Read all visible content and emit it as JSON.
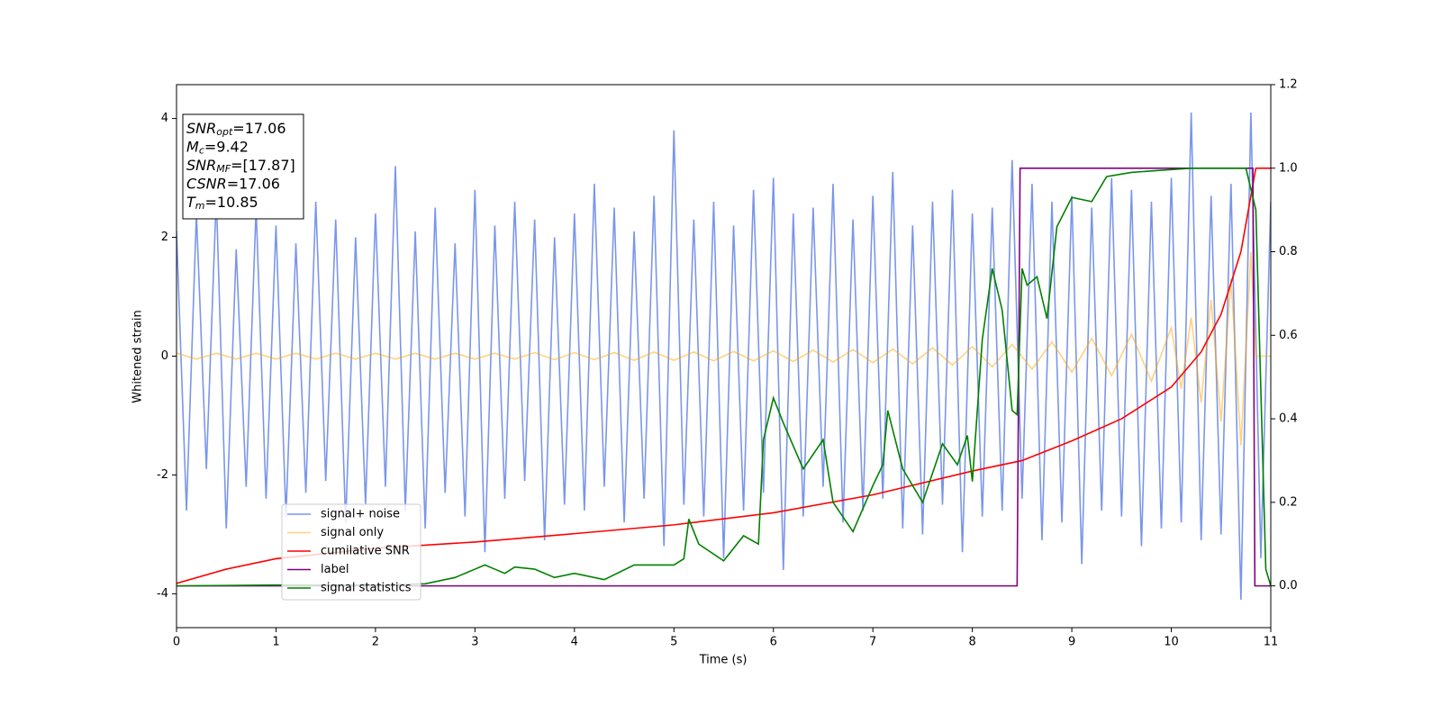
{
  "chart_data": {
    "type": "line",
    "xlabel": "Time (s)",
    "ylabel": "Whitened strain",
    "xlim": [
      0,
      11
    ],
    "xticks": [
      0,
      1,
      2,
      3,
      4,
      5,
      6,
      7,
      8,
      9,
      10,
      11
    ],
    "ylim": [
      -4.57,
      4.57
    ],
    "yticks": [
      -4,
      -2,
      0,
      2,
      4
    ],
    "y2lim": [
      -0.1,
      1.2
    ],
    "y2ticks": [
      {
        "value": 0,
        "label": "0.0"
      },
      {
        "value": 0.2,
        "label": "0.2"
      },
      {
        "value": 0.4,
        "label": "0.4"
      },
      {
        "value": 0.6,
        "label": "0.6"
      },
      {
        "value": 0.8,
        "label": "0.8"
      },
      {
        "value": 1.0,
        "label": "1.0"
      },
      {
        "value": 1.2,
        "label": "1.2"
      }
    ],
    "legend": "lower left",
    "annotation": [
      {
        "text": "SNR",
        "sub": "opt",
        "rest": "=17.06"
      },
      {
        "text": "M",
        "sub": "c",
        "rest": "=9.42"
      },
      {
        "text": "SNR",
        "sub": "MF",
        "rest": "=[17.87]"
      },
      {
        "text": "CSNR",
        "rest": "=17.06"
      },
      {
        "text": "T",
        "sub": "m",
        "rest": "=10.85"
      }
    ],
    "series": [
      {
        "name": "signal+ noise",
        "color": "#4169e1",
        "opacity": 0.7,
        "x": [
          0,
          0.1,
          0.2,
          0.3,
          0.4,
          0.5,
          0.6,
          0.7,
          0.8,
          0.9,
          1,
          1.1,
          1.2,
          1.3,
          1.4,
          1.5,
          1.6,
          1.7,
          1.8,
          1.9,
          2,
          2.1,
          2.2,
          2.3,
          2.4,
          2.5,
          2.6,
          2.7,
          2.8,
          2.9,
          3,
          3.1,
          3.2,
          3.3,
          3.4,
          3.5,
          3.6,
          3.7,
          3.8,
          3.9,
          4,
          4.1,
          4.2,
          4.3,
          4.4,
          4.5,
          4.6,
          4.7,
          4.8,
          4.9,
          5,
          5.1,
          5.2,
          5.3,
          5.4,
          5.5,
          5.6,
          5.7,
          5.8,
          5.9,
          6,
          6.1,
          6.2,
          6.3,
          6.4,
          6.5,
          6.6,
          6.7,
          6.8,
          6.9,
          7,
          7.1,
          7.2,
          7.3,
          7.4,
          7.5,
          7.6,
          7.7,
          7.8,
          7.9,
          8,
          8.1,
          8.2,
          8.3,
          8.4,
          8.5,
          8.6,
          8.7,
          8.8,
          8.9,
          9,
          9.1,
          9.2,
          9.3,
          9.4,
          9.5,
          9.6,
          9.7,
          9.8,
          9.9,
          10,
          10.1,
          10.2,
          10.3,
          10.4,
          10.5,
          10.6,
          10.7,
          10.8,
          10.9,
          11
        ],
        "values": [
          2.1,
          -2.6,
          2.4,
          -1.9,
          2.7,
          -2.9,
          1.8,
          -2.2,
          2.5,
          -2.4,
          2.2,
          -2.7,
          1.9,
          -2.3,
          2.6,
          -2.1,
          2.3,
          -2.8,
          2.0,
          -2.5,
          2.4,
          -2.2,
          3.2,
          -2.6,
          2.1,
          -2.9,
          2.5,
          -2.3,
          1.9,
          -2.7,
          2.8,
          -3.3,
          2.2,
          -2.4,
          2.6,
          -2.1,
          2.3,
          -3.1,
          2.0,
          -2.5,
          2.4,
          -2.6,
          2.9,
          -2.2,
          2.5,
          -2.8,
          2.1,
          -2.4,
          2.7,
          -3.2,
          3.8,
          -2.5,
          2.3,
          -2.7,
          2.6,
          -3.4,
          2.2,
          -2.6,
          2.8,
          -2.3,
          3.0,
          -3.6,
          2.4,
          -2.7,
          2.5,
          -2.2,
          2.9,
          -2.8,
          2.3,
          -2.6,
          2.7,
          -2.4,
          3.1,
          -2.9,
          2.2,
          -3.0,
          2.6,
          -2.5,
          2.8,
          -3.3,
          2.4,
          -2.7,
          2.5,
          -2.6,
          3.3,
          -2.4,
          2.9,
          -3.1,
          2.6,
          -2.8,
          2.7,
          -3.5,
          2.5,
          -2.6,
          3.0,
          -2.7,
          2.8,
          -3.2,
          2.6,
          -2.9,
          3.0,
          -2.8,
          4.1,
          -3.1,
          2.7,
          -3.0,
          2.9,
          -4.1,
          4.1,
          -3.4,
          2.6
        ]
      },
      {
        "name": "signal only",
        "color": "#ffa500",
        "opacity": 0.5,
        "x": [
          0,
          0.2,
          0.4,
          0.6,
          0.8,
          1,
          1.2,
          1.4,
          1.6,
          1.8,
          2,
          2.2,
          2.4,
          2.6,
          2.8,
          3,
          3.2,
          3.4,
          3.6,
          3.8,
          4,
          4.2,
          4.4,
          4.6,
          4.8,
          5,
          5.2,
          5.4,
          5.6,
          5.8,
          6,
          6.2,
          6.4,
          6.6,
          6.8,
          7,
          7.2,
          7.4,
          7.6,
          7.8,
          8,
          8.2,
          8.4,
          8.6,
          8.8,
          9,
          9.2,
          9.4,
          9.6,
          9.8,
          10,
          10.1,
          10.2,
          10.3,
          10.4,
          10.5,
          10.6,
          10.7,
          10.8,
          10.85,
          11
        ],
        "values": [
          0.05,
          -0.05,
          0.05,
          -0.05,
          0.05,
          -0.05,
          0.05,
          -0.05,
          0.05,
          -0.05,
          0.05,
          -0.05,
          0.05,
          -0.05,
          0.05,
          -0.05,
          0.05,
          -0.05,
          0.06,
          -0.06,
          0.06,
          -0.06,
          0.06,
          -0.07,
          0.07,
          -0.07,
          0.07,
          -0.08,
          0.08,
          -0.08,
          0.09,
          -0.09,
          0.1,
          -0.1,
          0.11,
          -0.11,
          0.12,
          -0.13,
          0.14,
          -0.15,
          0.16,
          -0.18,
          0.2,
          -0.22,
          0.24,
          -0.27,
          0.3,
          -0.33,
          0.37,
          -0.42,
          0.48,
          -0.55,
          0.65,
          -0.78,
          0.95,
          -1.1,
          1.3,
          -1.5,
          1.75,
          0,
          0
        ]
      },
      {
        "name": "cumilative SNR",
        "color": "#ff0000",
        "axis": "y2",
        "x": [
          0,
          0.5,
          1,
          2,
          3,
          4,
          5,
          6,
          7,
          8,
          8.5,
          9,
          9.5,
          10,
          10.3,
          10.5,
          10.7,
          10.85,
          11
        ],
        "values": [
          0.006,
          0.04,
          0.065,
          0.09,
          0.105,
          0.125,
          0.146,
          0.175,
          0.218,
          0.275,
          0.3,
          0.347,
          0.4,
          0.476,
          0.56,
          0.65,
          0.8,
          1.0,
          1.0
        ]
      },
      {
        "name": "label",
        "color": "#800080",
        "axis": "y2",
        "x": [
          0,
          8.45,
          8.48,
          10.82,
          10.84,
          11
        ],
        "values": [
          0,
          0,
          1,
          1,
          0,
          0
        ]
      },
      {
        "name": "signal statistics",
        "color": "#008000",
        "axis": "y2",
        "x": [
          0,
          1,
          2,
          2.5,
          2.8,
          3.0,
          3.1,
          3.2,
          3.3,
          3.4,
          3.6,
          3.8,
          4.0,
          4.3,
          4.6,
          5.0,
          5.1,
          5.15,
          5.25,
          5.5,
          5.7,
          5.85,
          5.9,
          6.0,
          6.1,
          6.3,
          6.5,
          6.6,
          6.8,
          7.0,
          7.1,
          7.15,
          7.3,
          7.5,
          7.7,
          7.85,
          7.95,
          8.0,
          8.1,
          8.2,
          8.3,
          8.4,
          8.45,
          8.5,
          8.55,
          8.65,
          8.75,
          8.85,
          9.0,
          9.2,
          9.35,
          9.6,
          9.9,
          10.2,
          10.5,
          10.75,
          10.85,
          10.95,
          11
        ],
        "values": [
          0,
          0.002,
          0.002,
          0.005,
          0.02,
          0.04,
          0.05,
          0.04,
          0.03,
          0.045,
          0.04,
          0.02,
          0.03,
          0.015,
          0.05,
          0.05,
          0.065,
          0.16,
          0.1,
          0.06,
          0.12,
          0.1,
          0.35,
          0.45,
          0.39,
          0.28,
          0.35,
          0.2,
          0.13,
          0.24,
          0.29,
          0.42,
          0.28,
          0.2,
          0.34,
          0.29,
          0.36,
          0.25,
          0.59,
          0.76,
          0.66,
          0.42,
          0.41,
          0.76,
          0.72,
          0.74,
          0.64,
          0.86,
          0.93,
          0.92,
          0.98,
          0.99,
          0.995,
          1.0,
          1.0,
          1.0,
          0.9,
          0.04,
          0
        ]
      }
    ]
  }
}
